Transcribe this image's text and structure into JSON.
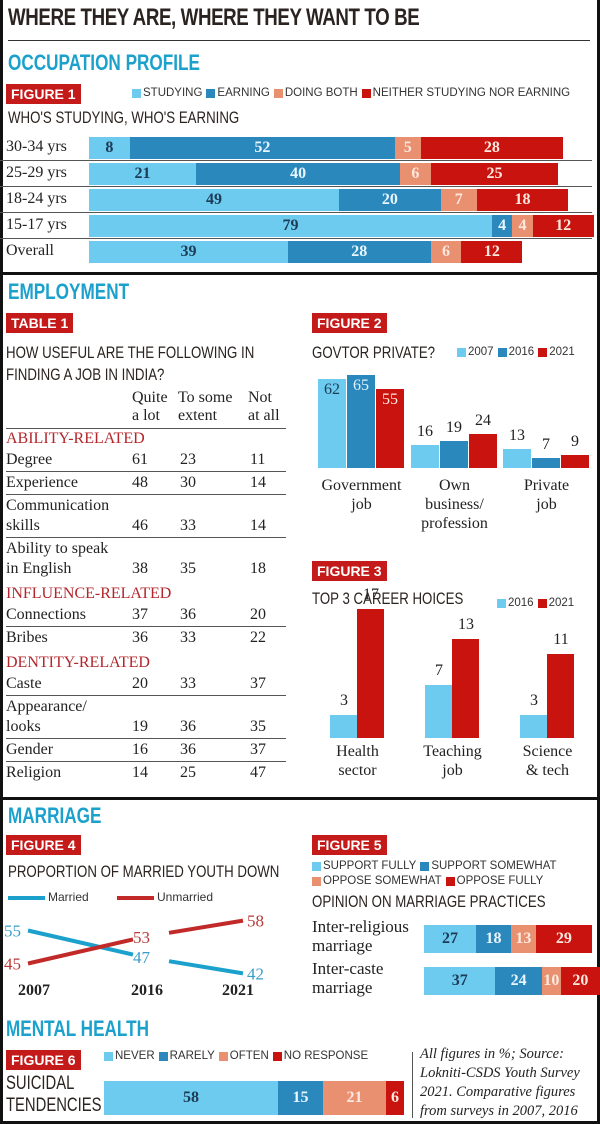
{
  "title": "WHERE THEY ARE, WHERE THEY WANT TO BE",
  "colors": {
    "studying": "#6ccbef",
    "earning": "#2b88bd",
    "both": "#e8906f",
    "neither": "#c8130f",
    "badge": "#c41a1a",
    "section": "#1ba1cc",
    "category": "#b3262b"
  },
  "occupation": {
    "section_title": "OCCUPATION PROFILE",
    "badge": "FIGURE 1",
    "subtitle": "WHO'S STUDYING, WHO'S EARNING",
    "legend": [
      "STUDYING",
      "EARNING",
      "DOING BOTH",
      "NEITHER STUDYING NOR EARNING"
    ]
  },
  "employment": {
    "section_title": "EMPLOYMENT",
    "table": {
      "badge": "TABLE 1",
      "title_line1": "HOW USEFUL ARE THE FOLLOWING IN",
      "title_line2": "FINDING A JOB IN INDIA?",
      "headers": [
        [
          "Quite",
          "a lot"
        ],
        [
          "To some",
          "extent"
        ],
        [
          "Not",
          "at all"
        ]
      ],
      "categories": [
        {
          "name": "ABILITY-RELATED",
          "rows": [
            {
              "label": [
                "Degree"
              ],
              "values": [
                "61",
                "23",
                "11"
              ]
            },
            {
              "label": [
                "Experience"
              ],
              "values": [
                "48",
                "30",
                "14"
              ]
            },
            {
              "label": [
                "Communication",
                "skills"
              ],
              "values": [
                "46",
                "33",
                "14"
              ]
            },
            {
              "label": [
                "Ability to speak",
                "in English"
              ],
              "values": [
                "38",
                "35",
                "18"
              ]
            }
          ]
        },
        {
          "name": "INFLUENCE-RELATED",
          "rows": [
            {
              "label": [
                "Connections"
              ],
              "values": [
                "37",
                "36",
                "20"
              ]
            },
            {
              "label": [
                "Bribes"
              ],
              "values": [
                "36",
                "33",
                "22"
              ]
            }
          ]
        },
        {
          "name": "DENTITY-RELATED",
          "rows": [
            {
              "label": [
                "Caste"
              ],
              "values": [
                "20",
                "33",
                "37"
              ]
            },
            {
              "label": [
                "Appearance/",
                "looks"
              ],
              "values": [
                "19",
                "36",
                "35"
              ]
            },
            {
              "label": [
                "Gender"
              ],
              "values": [
                "16",
                "36",
                "37"
              ]
            },
            {
              "label": [
                "Religion"
              ],
              "values": [
                "14",
                "25",
                "47"
              ]
            }
          ]
        }
      ]
    }
  },
  "marriage": {
    "section_title": "MARRIAGE"
  },
  "mental_health": {
    "section_title": "MENTAL HEALTH",
    "source_note": [
      "All figures in %; Source:",
      "Lokniti-CSDS Youth Survey",
      "2021. Comparative figures",
      "from surveys in 2007, 2016"
    ]
  },
  "chart_data": [
    {
      "id": "figure1",
      "type": "bar",
      "orientation": "horizontal-stacked",
      "badge": "FIGURE 1",
      "title": "WHO'S STUDYING, WHO'S EARNING",
      "categories": [
        "30-34 yrs",
        "25-29 yrs",
        "18-24 yrs",
        "15-17 yrs",
        "Overall"
      ],
      "series": [
        {
          "name": "STUDYING",
          "values": [
            8,
            21,
            49,
            79,
            39
          ]
        },
        {
          "name": "EARNING",
          "values": [
            52,
            40,
            20,
            4,
            28
          ]
        },
        {
          "name": "DOING BOTH",
          "values": [
            5,
            6,
            7,
            4,
            6
          ]
        },
        {
          "name": "NEITHER STUDYING NOR EARNING",
          "values": [
            28,
            25,
            18,
            12,
            12
          ]
        }
      ],
      "legend": "top-right",
      "unit": "%"
    },
    {
      "id": "figure2",
      "type": "bar",
      "orientation": "vertical-grouped",
      "badge": "FIGURE 2",
      "title": "GOVTOR PRIVATE?",
      "categories": [
        [
          "Government",
          "job"
        ],
        [
          "Own",
          "business/",
          "profession"
        ],
        [
          "Private",
          "job"
        ]
      ],
      "series": [
        {
          "name": "2007",
          "values": [
            62,
            16,
            13
          ]
        },
        {
          "name": "2016",
          "values": [
            65,
            19,
            7
          ]
        },
        {
          "name": "2021",
          "values": [
            55,
            24,
            9
          ]
        }
      ],
      "legend": "top-right",
      "ylim": [
        0,
        65
      ]
    },
    {
      "id": "figure3",
      "type": "bar",
      "orientation": "vertical-grouped",
      "badge": "FIGURE 3",
      "title": "TOP 3 CAREER HOICES",
      "categories": [
        [
          "Health",
          "sector"
        ],
        [
          "Teaching",
          "job"
        ],
        [
          "Science",
          "& tech"
        ]
      ],
      "series": [
        {
          "name": "2016",
          "values": [
            3,
            7,
            3
          ]
        },
        {
          "name": "2021",
          "values": [
            17,
            13,
            11
          ]
        }
      ],
      "legend": "top-right",
      "ylim": [
        0,
        17
      ]
    },
    {
      "id": "figure4",
      "type": "line",
      "badge": "FIGURE 4",
      "title": "PROPORTION OF MARRIED YOUTH DOWN",
      "x": [
        "2007",
        "2016",
        "2021"
      ],
      "series": [
        {
          "name": "Married",
          "values": [
            55,
            47,
            42
          ]
        },
        {
          "name": "Unmarried",
          "values": [
            45,
            53,
            58
          ]
        }
      ],
      "legend": "top-left",
      "ylim": [
        40,
        60
      ]
    },
    {
      "id": "figure5",
      "type": "bar",
      "orientation": "horizontal-stacked",
      "badge": "FIGURE 5",
      "title": "OPINION ON MARRIAGE PRACTICES",
      "categories": [
        [
          "Inter-religious",
          "marriage"
        ],
        [
          "Inter-caste",
          "marriage"
        ]
      ],
      "series": [
        {
          "name": "SUPPORT FULLY",
          "values": [
            27,
            37
          ]
        },
        {
          "name": "SUPPORT SOMEWHAT",
          "values": [
            18,
            24
          ]
        },
        {
          "name": "OPPOSE SOMEWHAT",
          "values": [
            13,
            10
          ]
        },
        {
          "name": "OPPOSE FULLY",
          "values": [
            29,
            20
          ]
        }
      ],
      "legend": "top"
    },
    {
      "id": "figure6",
      "type": "bar",
      "orientation": "horizontal-stacked",
      "badge": "FIGURE 6",
      "title": "SUICIDAL TENDENCIES",
      "categories": [
        [
          "SUICIDAL",
          "TENDENCIES"
        ]
      ],
      "series": [
        {
          "name": "NEVER",
          "values": [
            58
          ]
        },
        {
          "name": "RARELY",
          "values": [
            15
          ]
        },
        {
          "name": "OFTEN",
          "values": [
            21
          ]
        },
        {
          "name": "NO RESPONSE",
          "values": [
            6
          ]
        }
      ],
      "legend": "top"
    }
  ]
}
